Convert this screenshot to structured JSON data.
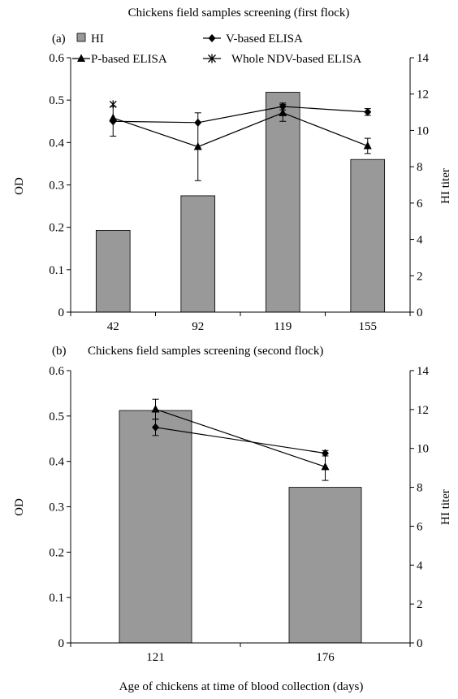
{
  "chart_data": [
    {
      "type": "bar+line",
      "panel_label": "(a)",
      "title": "Chickens field samples screening (first flock)",
      "xlabel": "",
      "ylabel": "OD",
      "y2label": "HI titer",
      "categories": [
        "42",
        "92",
        "119",
        "155"
      ],
      "ylim": [
        0,
        0.6
      ],
      "yticks": [
        "0",
        "0.1",
        "0.2",
        "0.3",
        "0.4",
        "0.5",
        "0.6"
      ],
      "y2lim": [
        0,
        14
      ],
      "y2ticks": [
        "0",
        "2",
        "4",
        "6",
        "8",
        "10",
        "12",
        "14"
      ],
      "bars": {
        "name": "HI",
        "axis": "right",
        "color": "#999999",
        "values": [
          4.5,
          6.4,
          12.1,
          8.4
        ]
      },
      "series": [
        {
          "name": "V-based ELISA",
          "marker": "diamond",
          "values": [
            0.45,
            0.447,
            0.485,
            0.472
          ],
          "errors": [
            0.035,
            0.0,
            0.008,
            0.008
          ]
        },
        {
          "name": "P-based ELISA",
          "marker": "triangle",
          "values": [
            0.458,
            0.39,
            0.47,
            0.392
          ],
          "errors": [
            0.0,
            0.08,
            0.02,
            0.018
          ]
        },
        {
          "name": "Whole NDV-based ELISA",
          "marker": "asterisk",
          "values": [
            0.49,
            null,
            null,
            null
          ],
          "errors": [
            0.0,
            null,
            null,
            null
          ]
        }
      ],
      "legend": {
        "placement": "top",
        "items": [
          "HI",
          "V-based ELISA",
          "P-based ELISA",
          "Whole NDV-based ELISA"
        ]
      }
    },
    {
      "type": "bar+line",
      "panel_label": "(b)",
      "title": "Chickens field samples screening (second flock)",
      "xlabel": "Age of chickens at time of blood collection (days)",
      "ylabel": "OD",
      "y2label": "HI titer",
      "categories": [
        "121",
        "176"
      ],
      "ylim": [
        0,
        0.6
      ],
      "yticks": [
        "0",
        "0.1",
        "0.2",
        "0.3",
        "0.4",
        "0.5",
        "0.6"
      ],
      "y2lim": [
        0,
        14
      ],
      "y2ticks": [
        "0",
        "2",
        "4",
        "6",
        "8",
        "10",
        "12",
        "14"
      ],
      "bars": {
        "name": "HI",
        "axis": "right",
        "color": "#999999",
        "values": [
          11.95,
          8.0
        ]
      },
      "series": [
        {
          "name": "V-based ELISA",
          "marker": "diamond",
          "values": [
            0.475,
            0.418
          ],
          "errors": [
            0.018,
            0.006
          ]
        },
        {
          "name": "P-based ELISA",
          "marker": "triangle",
          "values": [
            0.515,
            0.388
          ],
          "errors": [
            0.022,
            0.03
          ]
        }
      ]
    }
  ]
}
